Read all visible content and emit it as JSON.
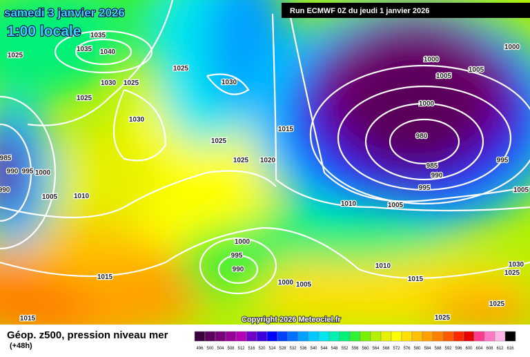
{
  "header": {
    "date": "samedi 3 janvier 2026",
    "time": "1:00 locale",
    "run": "Run ECMWF 0Z du jeudi 1 janvier 2026"
  },
  "isobar_labels": [
    1025,
    1035,
    1035,
    1040,
    1030,
    1025,
    1025,
    1025,
    1030,
    1030,
    1025,
    1025,
    1020,
    1015,
    985,
    990,
    995,
    1000,
    990,
    1005,
    1010,
    1015,
    1015,
    1000,
    995,
    990,
    1000,
    1005,
    1010,
    1005,
    1010,
    1015,
    1000,
    1005,
    1005,
    1000,
    980,
    985,
    990,
    995,
    995,
    1005,
    1030,
    1025,
    1025,
    1025,
    1000
  ],
  "copyright": "Copyright 2026 Meteociel.fr",
  "legend": {
    "title": "Géop. z500, pression niveau mer",
    "lead": "(+48h)",
    "labels": [
      496,
      500,
      504,
      508,
      512,
      516,
      520,
      524,
      528,
      532,
      536,
      540,
      544,
      548,
      552,
      556,
      560,
      564,
      568,
      572,
      576,
      580,
      584,
      588,
      592,
      596,
      600,
      604,
      608,
      612,
      616
    ],
    "colors": [
      "#3c003c",
      "#5a005a",
      "#780078",
      "#960096",
      "#b400b4",
      "#7000c8",
      "#3c00dc",
      "#0000ff",
      "#0040ff",
      "#0070ff",
      "#00a0ff",
      "#00c8ff",
      "#00e6f0",
      "#00f0b4",
      "#00f078",
      "#32f032",
      "#78f000",
      "#b4f000",
      "#e6f000",
      "#ffff00",
      "#ffe000",
      "#ffc000",
      "#ffa000",
      "#ff8000",
      "#ff5a00",
      "#ff2800",
      "#e60000",
      "#ff3c8c",
      "#ff78c8",
      "#ffb4e6",
      "#000000"
    ]
  }
}
